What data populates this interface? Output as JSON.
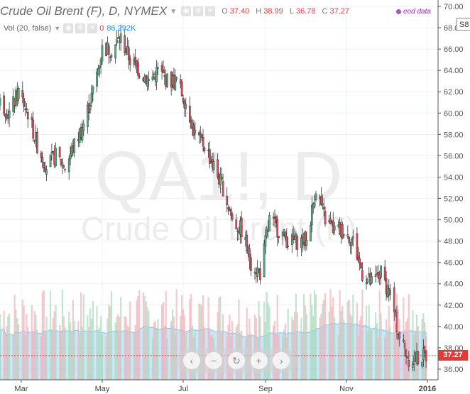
{
  "legend": {
    "title": "Crude Oil Brent (F), D, NYMEX",
    "o_label": "O",
    "o_value": "37.40",
    "h_label": "H",
    "h_value": "38.99",
    "l_label": "L",
    "l_value": "36.78",
    "c_label": "C",
    "c_value": "37.27",
    "source": "eod data",
    "symbol_cut": "S8"
  },
  "volume_legend": {
    "label": "Vol (20, false)",
    "zero": "0",
    "value": "86.292K"
  },
  "watermark": {
    "ticker": "QA1!, D",
    "name": "Crude Oil Brent (F)"
  },
  "nav_buttons": [
    "‹",
    "−",
    "↻",
    "+",
    "›"
  ],
  "colors": {
    "up": "#53b987",
    "down": "#eb4d5c",
    "volume_ma": "#9fd2f5",
    "last_price": "#e53935"
  },
  "chart_data": {
    "type": "candlestick",
    "y_ticks": [
      "70.00",
      "68.00",
      "66.00",
      "64.00",
      "62.00",
      "60.00",
      "58.00",
      "56.00",
      "54.00",
      "52.00",
      "50.00",
      "48.00",
      "46.00",
      "44.00",
      "42.00",
      "40.00",
      "38.00",
      "36.00"
    ],
    "ylim": [
      35,
      70.6
    ],
    "x_ticks": [
      "Mar",
      "May",
      "Jul",
      "Sep",
      "Nov",
      "2016"
    ],
    "last_price": 37.27,
    "path": [
      [
        "2015-02-13",
        61
      ],
      [
        "2015-02-20",
        60
      ],
      [
        "2015-02-27",
        62
      ],
      [
        "2015-03-06",
        60
      ],
      [
        "2015-03-13",
        57
      ],
      [
        "2015-03-20",
        55
      ],
      [
        "2015-03-27",
        56
      ],
      [
        "2015-04-03",
        55
      ],
      [
        "2015-04-10",
        57
      ],
      [
        "2015-04-17",
        59
      ],
      [
        "2015-04-24",
        62
      ],
      [
        "2015-05-01",
        66
      ],
      [
        "2015-05-08",
        66
      ],
      [
        "2015-05-15",
        67
      ],
      [
        "2015-05-22",
        65
      ],
      [
        "2015-05-29",
        64
      ],
      [
        "2015-06-05",
        63
      ],
      [
        "2015-06-12",
        64
      ],
      [
        "2015-06-19",
        63
      ],
      [
        "2015-06-26",
        63
      ],
      [
        "2015-07-03",
        61
      ],
      [
        "2015-07-10",
        58
      ],
      [
        "2015-07-17",
        57
      ],
      [
        "2015-07-24",
        55
      ],
      [
        "2015-07-31",
        53
      ],
      [
        "2015-08-07",
        50
      ],
      [
        "2015-08-14",
        49
      ],
      [
        "2015-08-21",
        46
      ],
      [
        "2015-08-28",
        45
      ],
      [
        "2015-09-04",
        50
      ],
      [
        "2015-09-11",
        49
      ],
      [
        "2015-09-18",
        48
      ],
      [
        "2015-09-25",
        48
      ],
      [
        "2015-10-02",
        48
      ],
      [
        "2015-10-09",
        53
      ],
      [
        "2015-10-16",
        50
      ],
      [
        "2015-10-23",
        49
      ],
      [
        "2015-10-30",
        49
      ],
      [
        "2015-11-06",
        48
      ],
      [
        "2015-11-13",
        45
      ],
      [
        "2015-11-20",
        44
      ],
      [
        "2015-11-27",
        45
      ],
      [
        "2015-12-04",
        43
      ],
      [
        "2015-12-11",
        39
      ],
      [
        "2015-12-18",
        37
      ],
      [
        "2015-12-25",
        37
      ],
      [
        "2015-12-31",
        37.27
      ]
    ]
  }
}
